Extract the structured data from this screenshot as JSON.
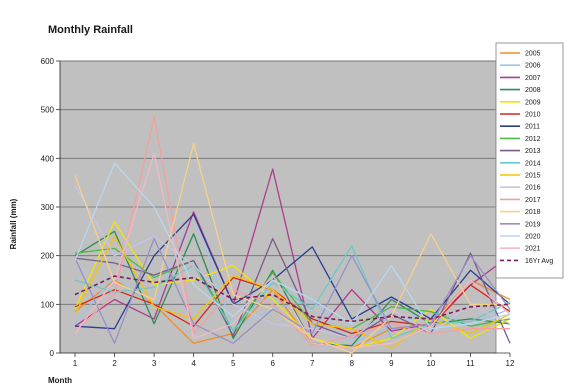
{
  "chart_data": {
    "type": "line",
    "title": "Monthly Rainfall",
    "xlabel": "Month",
    "ylabel": "Rainfall  (mm)",
    "x": [
      1,
      2,
      3,
      4,
      5,
      6,
      7,
      8,
      9,
      10,
      11,
      12
    ],
    "ylim": [
      0,
      600
    ],
    "yticks": [
      0,
      100,
      200,
      300,
      400,
      500,
      600
    ],
    "grid": true,
    "legend": "right",
    "series": [
      {
        "name": "2005",
        "color": "#f08a2c",
        "dashed": false,
        "values": [
          85,
          150,
          100,
          20,
          40,
          130,
          20,
          10,
          50,
          60,
          150,
          110
        ]
      },
      {
        "name": "2006",
        "color": "#9fc5e8",
        "dashed": false,
        "values": [
          60,
          160,
          95,
          290,
          50,
          90,
          110,
          20,
          55,
          90,
          60,
          90
        ]
      },
      {
        "name": "2007",
        "color": "#b03a8e",
        "dashed": false,
        "values": [
          55,
          110,
          70,
          290,
          100,
          378,
          30,
          130,
          45,
          60,
          140,
          200
        ]
      },
      {
        "name": "2008",
        "color": "#2e8b57",
        "dashed": false,
        "values": [
          200,
          250,
          60,
          245,
          30,
          170,
          20,
          15,
          110,
          60,
          70,
          60
        ]
      },
      {
        "name": "2009",
        "color": "#f5e400",
        "dashed": false,
        "values": [
          90,
          270,
          140,
          150,
          180,
          110,
          30,
          10,
          30,
          90,
          30,
          70
        ]
      },
      {
        "name": "2010",
        "color": "#d7261e",
        "dashed": false,
        "values": [
          95,
          130,
          100,
          55,
          155,
          130,
          70,
          40,
          65,
          55,
          140,
          85
        ]
      },
      {
        "name": "2011",
        "color": "#2a3f8f",
        "dashed": false,
        "values": [
          55,
          50,
          200,
          285,
          100,
          150,
          218,
          70,
          115,
          70,
          170,
          100
        ]
      },
      {
        "name": "2012",
        "color": "#52b848",
        "dashed": false,
        "values": [
          205,
          215,
          155,
          190,
          45,
          165,
          60,
          50,
          95,
          85,
          55,
          70
        ]
      },
      {
        "name": "2013",
        "color": "#7a5c8a",
        "dashed": false,
        "values": [
          195,
          185,
          160,
          190,
          35,
          235,
          60,
          30,
          80,
          40,
          205,
          20
        ]
      },
      {
        "name": "2014",
        "color": "#6bc8c8",
        "dashed": false,
        "values": [
          150,
          125,
          135,
          180,
          45,
          145,
          90,
          220,
          30,
          60,
          65,
          105
        ]
      },
      {
        "name": "2015",
        "color": "#f6c400",
        "dashed": false,
        "values": [
          80,
          240,
          95,
          70,
          160,
          130,
          60,
          50,
          10,
          70,
          40,
          80
        ]
      },
      {
        "name": "2016",
        "color": "#c9c2e6",
        "dashed": false,
        "values": [
          345,
          200,
          240,
          180,
          100,
          60,
          50,
          30,
          90,
          40,
          100,
          60
        ]
      },
      {
        "name": "2017",
        "color": "#f4a0a0",
        "dashed": false,
        "values": [
          45,
          120,
          485,
          40,
          130,
          100,
          15,
          35,
          60,
          40,
          50,
          50
        ]
      },
      {
        "name": "2018",
        "color": "#f7d18a",
        "dashed": false,
        "values": [
          365,
          145,
          110,
          430,
          120,
          90,
          30,
          0,
          75,
          245,
          100,
          100
        ]
      },
      {
        "name": "2019",
        "color": "#9a8fc8",
        "dashed": false,
        "values": [
          195,
          20,
          235,
          60,
          20,
          90,
          40,
          200,
          50,
          60,
          200,
          90
        ]
      },
      {
        "name": "2020",
        "color": "#b8d8f0",
        "dashed": false,
        "values": [
          190,
          390,
          300,
          140,
          75,
          150,
          110,
          60,
          180,
          50,
          60,
          80
        ]
      },
      {
        "name": "2021",
        "color": "#f2b8c6",
        "dashed": false,
        "values": [
          40,
          150,
          410,
          30,
          60,
          160,
          20,
          10,
          20,
          55,
          150,
          80
        ]
      },
      {
        "name": "16Yr Avg",
        "color": "#7a1f5a",
        "dashed": true,
        "values": [
          120,
          158,
          145,
          155,
          110,
          120,
          75,
          65,
          75,
          70,
          95,
          100
        ]
      }
    ]
  }
}
